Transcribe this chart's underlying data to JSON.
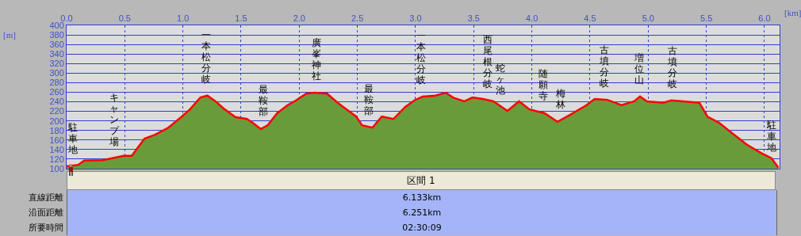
{
  "chart_data": {
    "type": "area",
    "xlabel": "[km]",
    "ylabel": "[m]",
    "x": [
      0,
      0.1,
      0.15,
      0.31,
      0.49,
      0.56,
      0.6,
      0.67,
      0.76,
      0.87,
      0.99,
      1.06,
      1.15,
      1.21,
      1.28,
      1.35,
      1.45,
      1.55,
      1.6,
      1.67,
      1.73,
      1.81,
      1.9,
      1.96,
      2.06,
      2.13,
      2.24,
      2.33,
      2.44,
      2.49,
      2.54,
      2.63,
      2.71,
      2.81,
      2.91,
      2.99,
      3.06,
      3.17,
      3.26,
      3.33,
      3.42,
      3.49,
      3.58,
      3.67,
      3.79,
      3.89,
      3.98,
      4.11,
      4.22,
      4.33,
      4.47,
      4.54,
      4.65,
      4.77,
      4.88,
      4.93,
      4.99,
      5.13,
      5.2,
      5.44,
      5.51,
      5.61,
      5.74,
      5.85,
      5.97,
      6.06,
      6.12
    ],
    "series": [
      {
        "color": "#6a9b3a",
        "values": [
          105,
          108,
          117,
          118,
          127,
          127,
          140,
          163,
          171,
          185,
          209,
          224,
          249,
          253,
          241,
          226,
          208,
          204,
          196,
          183,
          191,
          216,
          233,
          241,
          257,
          259,
          257,
          238,
          218,
          209,
          191,
          186,
          209,
          204,
          229,
          243,
          251,
          253,
          259,
          248,
          241,
          249,
          246,
          241,
          221,
          241,
          224,
          216,
          198,
          213,
          233,
          246,
          244,
          233,
          241,
          251,
          241,
          238,
          243,
          238,
          209,
          196,
          171,
          150,
          133,
          122,
          102
        ]
      },
      {
        "type": "line",
        "color": "#ff0000",
        "values": [
          105,
          108,
          117,
          118,
          127,
          127,
          140,
          163,
          171,
          185,
          209,
          224,
          249,
          253,
          241,
          226,
          208,
          204,
          196,
          183,
          191,
          216,
          233,
          241,
          257,
          259,
          257,
          238,
          218,
          209,
          191,
          186,
          209,
          204,
          229,
          243,
          251,
          253,
          259,
          248,
          241,
          249,
          246,
          241,
          221,
          241,
          224,
          216,
          198,
          213,
          233,
          246,
          244,
          233,
          241,
          251,
          241,
          238,
          243,
          238,
          209,
          196,
          171,
          150,
          133,
          122,
          102
        ]
      }
    ],
    "xlim": [
      0,
      6.13
    ],
    "ylim": [
      100,
      400
    ],
    "xticks": [
      {
        "value": 0,
        "label": "0.0"
      },
      {
        "value": 0.5,
        "label": "0.5"
      },
      {
        "value": 1,
        "label": "1.0"
      },
      {
        "value": 1.5,
        "label": "1.5"
      },
      {
        "value": 2,
        "label": "2.0"
      },
      {
        "value": 2.5,
        "label": "2.5"
      },
      {
        "value": 3,
        "label": "3.0"
      },
      {
        "value": 3.5,
        "label": "3.5"
      },
      {
        "value": 4,
        "label": "4.0"
      },
      {
        "value": 4.5,
        "label": "4.5"
      },
      {
        "value": 5,
        "label": "5.0"
      },
      {
        "value": 5.5,
        "label": "5.5"
      },
      {
        "value": 6,
        "label": "6.0"
      }
    ],
    "yticks": [
      100,
      120,
      140,
      160,
      180,
      200,
      220,
      240,
      260,
      280,
      300,
      320,
      340,
      360,
      380,
      400
    ],
    "grid": true,
    "marker": "none",
    "legend": false,
    "annotations": [
      {
        "text": "駐車地",
        "x": 0,
        "y": 105
      },
      {
        "text": "キャンプ場",
        "x": 0.41,
        "y": 122
      },
      {
        "text": "一本松分岐",
        "x": 1.2,
        "y": 253
      },
      {
        "text": "最鞍部",
        "x": 1.69,
        "y": 185
      },
      {
        "text": "廣峯神社",
        "x": 2.15,
        "y": 259
      },
      {
        "text": "最鞍部",
        "x": 2.6,
        "y": 186
      },
      {
        "text": "一本松分岐",
        "x": 3.05,
        "y": 251
      },
      {
        "text": "西尾根分岐",
        "x": 3.62,
        "y": 243
      },
      {
        "text": "蛇ヶ池",
        "x": 3.73,
        "y": 230
      },
      {
        "text": "随願寺",
        "x": 4.1,
        "y": 218
      },
      {
        "text": "梅林",
        "x": 4.25,
        "y": 200
      },
      {
        "text": "古墳分岐",
        "x": 4.62,
        "y": 245
      },
      {
        "text": "増位山",
        "x": 4.92,
        "y": 251
      },
      {
        "text": "古墳分岐",
        "x": 5.21,
        "y": 243
      },
      {
        "text": "駐車地",
        "x": 6.06,
        "y": 110
      },
      "区間 1",
      "直線距離",
      "6.133km",
      "沿面距離",
      "6.251km",
      "所要時間",
      "02:30:09"
    ]
  }
}
